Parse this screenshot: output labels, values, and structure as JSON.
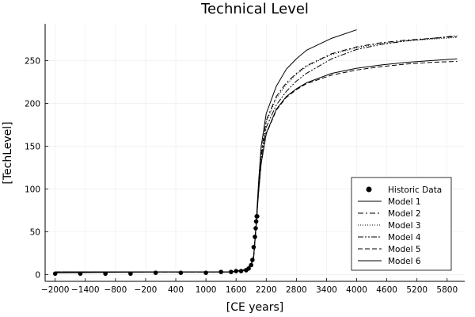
{
  "chart_data": {
    "type": "line",
    "title": "Technical Level",
    "xlabel": "[CE years]",
    "ylabel": "[TechLevel]",
    "xlim": [
      -2200,
      6150
    ],
    "ylim": [
      -8,
      293
    ],
    "x_ticks": [
      -2000,
      -1400,
      -800,
      -200,
      400,
      1000,
      1600,
      2200,
      2800,
      3400,
      4000,
      4600,
      5200,
      5800
    ],
    "x_tick_labels": [
      "−2000",
      "−1400",
      "−800",
      "−200",
      "400",
      "1000",
      "1600",
      "2200",
      "2800",
      "3400",
      "4000",
      "4600",
      "5200",
      "5800"
    ],
    "y_ticks": [
      0,
      50,
      100,
      150,
      200,
      250
    ],
    "y_tick_labels": [
      "0",
      "50",
      "100",
      "150",
      "200",
      "250"
    ],
    "grid": true,
    "legend_position": "bottom-right",
    "scatter": {
      "name": "Historic Data",
      "x": [
        -2000,
        -1500,
        -1000,
        -500,
        0,
        500,
        1000,
        1300,
        1500,
        1600,
        1700,
        1800,
        1850,
        1900,
        1925,
        1950,
        1975,
        1990,
        2000,
        2010,
        2020
      ],
      "y": [
        1,
        1,
        1,
        1,
        2,
        2,
        2,
        3,
        3,
        4,
        4,
        5,
        7,
        11,
        17,
        32,
        44,
        54,
        62,
        68,
        68
      ]
    },
    "series": [
      {
        "name": "Model 1",
        "dash": "",
        "x": [
          -2000,
          0,
          1000,
          1500,
          1800,
          1900,
          1950,
          2000,
          2050,
          2100,
          2200,
          2400,
          2600,
          2800,
          3000,
          3500,
          4000
        ],
        "y": [
          2,
          3,
          3,
          3,
          6,
          12,
          22,
          60,
          110,
          150,
          188,
          220,
          240,
          252,
          262,
          276,
          286
        ]
      },
      {
        "name": "Model 2",
        "dash": "7,3,2,3",
        "x": [
          -2000,
          0,
          1000,
          1500,
          1800,
          1900,
          1950,
          2000,
          2050,
          2100,
          2200,
          2400,
          2600,
          2800,
          3000,
          3500,
          4000,
          4500,
          5000,
          5500,
          6000
        ],
        "y": [
          3,
          3,
          3,
          3,
          5,
          11,
          20,
          58,
          105,
          142,
          180,
          208,
          224,
          235,
          244,
          258,
          266,
          271,
          274,
          276,
          278
        ]
      },
      {
        "name": "Model 3",
        "dash": "1,2",
        "x": [
          -2000,
          0,
          1000,
          1500,
          1800,
          1900,
          1950,
          2000,
          2050,
          2100,
          2200,
          2400,
          2600,
          2800,
          3000,
          3500,
          4000,
          4500,
          5000,
          5500,
          6000
        ],
        "y": [
          3,
          3,
          3,
          3,
          5,
          11,
          20,
          58,
          104,
          140,
          178,
          206,
          222,
          234,
          243,
          257,
          265,
          270,
          273,
          275,
          277
        ]
      },
      {
        "name": "Model 4",
        "dash": "7,2,2,2,2,2",
        "x": [
          -2000,
          0,
          1000,
          1500,
          1800,
          1900,
          1950,
          2000,
          2050,
          2100,
          2200,
          2400,
          2600,
          2800,
          3000,
          3500,
          4000,
          4500,
          5000,
          5500,
          6000
        ],
        "y": [
          3,
          3,
          3,
          3,
          5,
          11,
          20,
          58,
          100,
          136,
          172,
          198,
          214,
          226,
          235,
          252,
          263,
          269,
          273,
          276,
          279
        ]
      },
      {
        "name": "Model 5",
        "dash": "6,3",
        "x": [
          -2000,
          0,
          1000,
          1500,
          1800,
          1900,
          1950,
          2000,
          2050,
          2100,
          2200,
          2400,
          2600,
          2800,
          3000,
          3500,
          4000,
          4500,
          5000,
          5500,
          6000
        ],
        "y": [
          3,
          3,
          3,
          3,
          5,
          11,
          20,
          58,
          98,
          130,
          164,
          192,
          207,
          216,
          223,
          233,
          239,
          243,
          246,
          248,
          249
        ]
      },
      {
        "name": "Model 6",
        "dash": "",
        "x": [
          -2000,
          0,
          1000,
          1500,
          1800,
          1900,
          1950,
          2000,
          2050,
          2100,
          2200,
          2400,
          2600,
          2800,
          3000,
          3500,
          4000,
          4500,
          5000,
          5500,
          6000
        ],
        "y": [
          3,
          3,
          3,
          3,
          5,
          11,
          20,
          58,
          98,
          130,
          165,
          193,
          208,
          217,
          224,
          235,
          241,
          245,
          248,
          250,
          252
        ]
      }
    ]
  }
}
